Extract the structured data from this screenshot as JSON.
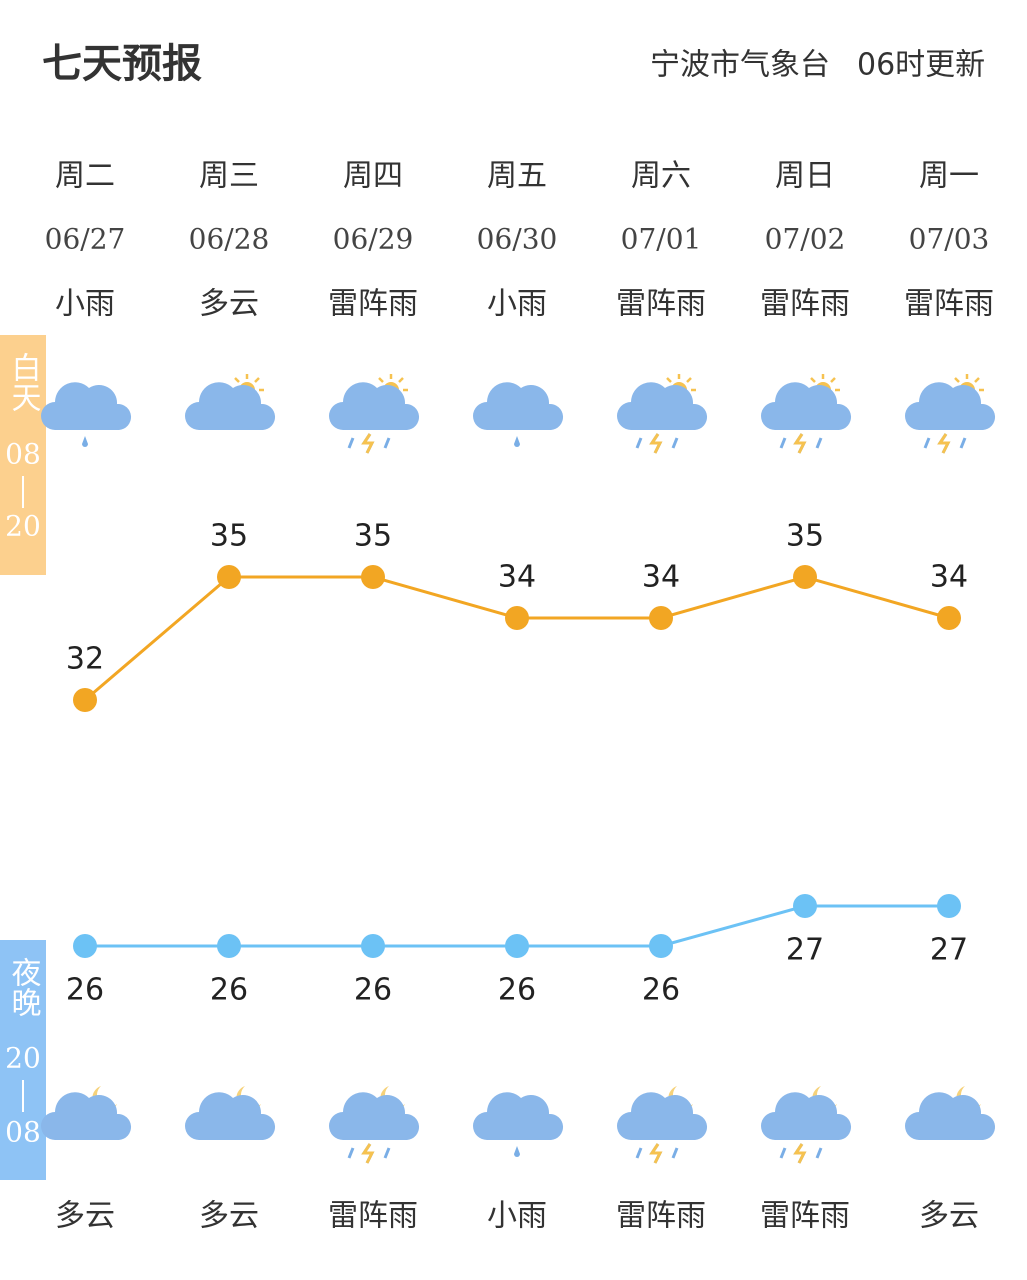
{
  "header": {
    "title": "七天预报",
    "source": "宁波市气象台",
    "update": "06时更新"
  },
  "side_labels": {
    "day": "白天",
    "day_hours": [
      "08",
      "20"
    ],
    "night": "夜晚",
    "night_hours": [
      "20",
      "08"
    ]
  },
  "days": [
    {
      "weekday": "周二",
      "date": "06/27",
      "day_weather": "小雨",
      "night_weather": "多云",
      "high": 32,
      "low": 26
    },
    {
      "weekday": "周三",
      "date": "06/28",
      "day_weather": "多云",
      "night_weather": "多云",
      "high": 35,
      "low": 26
    },
    {
      "weekday": "周四",
      "date": "06/29",
      "day_weather": "雷阵雨",
      "night_weather": "雷阵雨",
      "high": 35,
      "low": 26
    },
    {
      "weekday": "周五",
      "date": "06/30",
      "day_weather": "小雨",
      "night_weather": "小雨",
      "high": 34,
      "low": 26
    },
    {
      "weekday": "周六",
      "date": "07/01",
      "day_weather": "雷阵雨",
      "night_weather": "雷阵雨",
      "high": 34,
      "low": 26
    },
    {
      "weekday": "周日",
      "date": "07/02",
      "day_weather": "雷阵雨",
      "night_weather": "雷阵雨",
      "high": 35,
      "low": 27
    },
    {
      "weekday": "周一",
      "date": "07/03",
      "day_weather": "雷阵雨",
      "night_weather": "多云",
      "high": 34,
      "low": 27
    }
  ]
}
